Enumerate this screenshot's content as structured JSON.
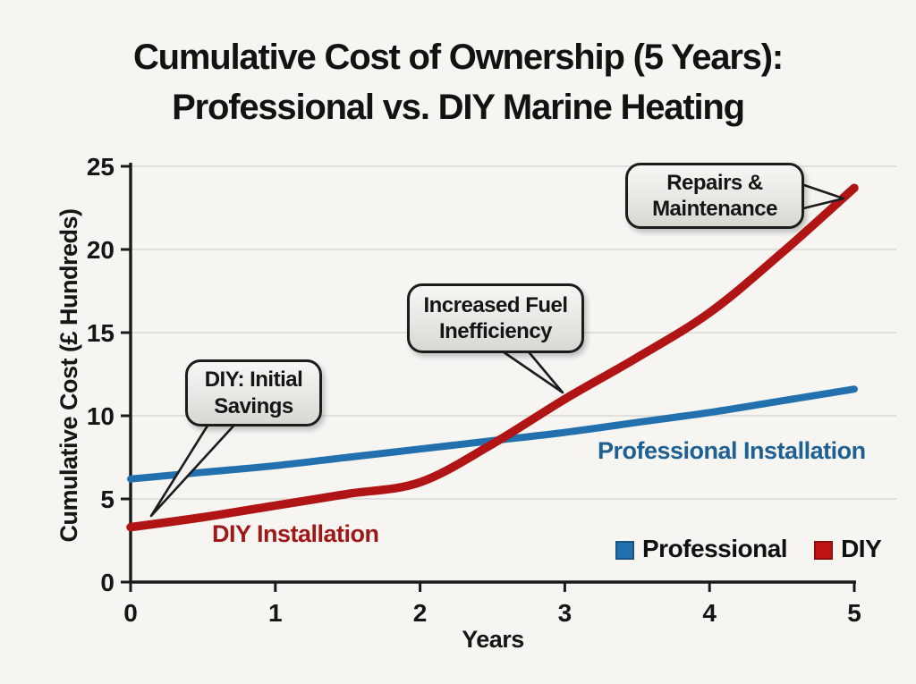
{
  "title": {
    "line1": "Cumulative Cost of Ownership (5 Years):",
    "line2": "Professional vs. DIY Marine Heating"
  },
  "chart_data": {
    "type": "line",
    "title": "Cumulative Cost of Ownership (5 Years): Professional vs. DIY Marine Heating",
    "xlabel": "Years",
    "ylabel": "Cumulative Cost (£ Hundreds)",
    "xlim": [
      0,
      5
    ],
    "ylim": [
      0,
      25
    ],
    "xticks": [
      0,
      1,
      2,
      3,
      4,
      5
    ],
    "yticks": [
      0,
      5,
      10,
      15,
      20,
      25
    ],
    "grid": "horizontal",
    "x": [
      0,
      0.5,
      1,
      1.5,
      2,
      2.5,
      3,
      3.5,
      4,
      4.5,
      5
    ],
    "series": [
      {
        "name": "Professional",
        "color": "#2271ae",
        "values": [
          6.2,
          6.6,
          7.0,
          7.5,
          8.0,
          8.5,
          9.0,
          9.6,
          10.2,
          10.9,
          11.6
        ]
      },
      {
        "name": "DIY",
        "color": "#b01414",
        "values": [
          3.3,
          3.9,
          4.6,
          5.3,
          6.0,
          8.3,
          11.0,
          13.5,
          16.2,
          19.8,
          23.7
        ]
      }
    ],
    "legend": {
      "position": "bottom-right",
      "items": [
        {
          "label": "Professional",
          "color": "#2271ae"
        },
        {
          "label": "DIY",
          "color": "#c01414"
        }
      ]
    },
    "annotations": {
      "callouts": [
        {
          "line1": "DIY: Initial",
          "line2": "Savings"
        },
        {
          "line1": "Increased Fuel",
          "line2": "Inefficiency"
        },
        {
          "line1": "Repairs &",
          "line2": "Maintenance"
        }
      ],
      "series_labels": [
        {
          "text": "Professional Installation",
          "color": "#1e6092"
        },
        {
          "text": "DIY Installation",
          "color": "#9e1818"
        }
      ]
    }
  }
}
